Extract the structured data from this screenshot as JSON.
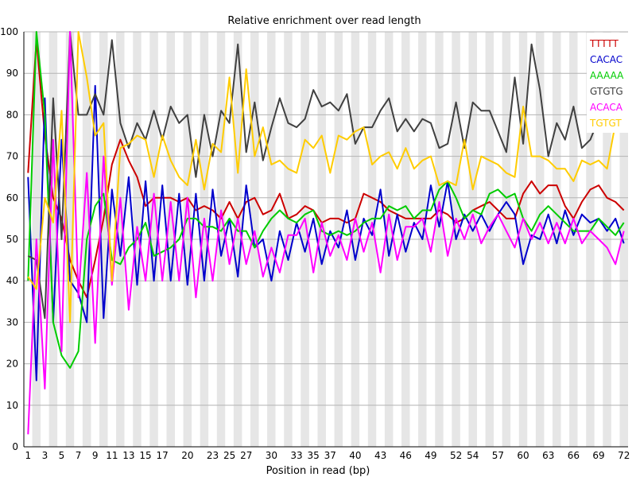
{
  "chart_data": {
    "type": "line",
    "title": "Relative enrichment over read length",
    "xlabel": "Position in read (bp)",
    "ylabel": "",
    "ylim": [
      0,
      100
    ],
    "yticks": [
      0,
      10,
      20,
      30,
      40,
      50,
      60,
      70,
      80,
      90,
      100
    ],
    "x": [
      1,
      2,
      3,
      4,
      5,
      6,
      7,
      8,
      9,
      10,
      11,
      12,
      13,
      14,
      15,
      16,
      17,
      18,
      19,
      20,
      21,
      22,
      23,
      24,
      25,
      26,
      27,
      28,
      29,
      30,
      31,
      32,
      33,
      34,
      35,
      36,
      37,
      38,
      39,
      40,
      41,
      42,
      43,
      44,
      45,
      46,
      47,
      48,
      49,
      50,
      51,
      52,
      53,
      54,
      55,
      56,
      57,
      58,
      59,
      60,
      61,
      62,
      63,
      64,
      65,
      66,
      67,
      68,
      69,
      70,
      71,
      72
    ],
    "xtick_labels": [
      "1",
      "3",
      "5",
      "7",
      "9",
      "11",
      "13",
      "15",
      "17",
      "20",
      "23",
      "25",
      "27",
      "30",
      "33",
      "35",
      "37",
      "40",
      "43",
      "46",
      "49",
      "52",
      "54",
      "57",
      "60",
      "63",
      "66",
      "69",
      "72"
    ],
    "xtick_positions": [
      1,
      3,
      5,
      7,
      9,
      11,
      13,
      15,
      17,
      20,
      23,
      25,
      27,
      30,
      33,
      35,
      37,
      40,
      43,
      46,
      49,
      52,
      54,
      57,
      60,
      63,
      66,
      69,
      72
    ],
    "grid": true,
    "legend_position": "top-right",
    "series": [
      {
        "name": "TTTTT",
        "color": "#cc0000",
        "values": [
          66,
          98,
          75,
          60,
          55,
          45,
          40,
          36,
          45,
          55,
          68,
          74,
          69,
          65,
          58,
          60,
          60,
          60,
          59,
          60,
          57,
          58,
          57,
          55,
          59,
          55,
          59,
          60,
          56,
          57,
          61,
          55,
          56,
          58,
          57,
          54,
          55,
          55,
          54,
          55,
          61,
          60,
          59,
          57,
          56,
          55,
          55,
          55,
          55,
          57,
          56,
          54,
          55,
          57,
          58,
          59,
          57,
          55,
          55,
          61,
          64,
          61,
          63,
          63,
          58,
          55,
          59,
          62,
          63,
          60,
          59,
          57
        ]
      },
      {
        "name": "CACAC",
        "color": "#0000cc",
        "values": [
          65,
          16,
          84,
          30,
          74,
          40,
          37,
          30,
          87,
          31,
          62,
          46,
          65,
          39,
          64,
          40,
          63,
          40,
          61,
          39,
          61,
          40,
          62,
          46,
          55,
          41,
          63,
          48,
          50,
          40,
          52,
          45,
          54,
          47,
          55,
          44,
          52,
          48,
          57,
          45,
          55,
          51,
          62,
          46,
          56,
          47,
          54,
          50,
          63,
          53,
          64,
          50,
          56,
          52,
          56,
          52,
          56,
          59,
          56,
          44,
          51,
          50,
          56,
          49,
          57,
          51,
          56,
          54,
          55,
          52,
          55,
          49
        ]
      },
      {
        "name": "AAAAA",
        "color": "#00cc00",
        "values": [
          40,
          100,
          80,
          30,
          22,
          19,
          23,
          50,
          58,
          61,
          45,
          44,
          48,
          50,
          54,
          46,
          47,
          48,
          50,
          55,
          55,
          53,
          53,
          52,
          55,
          52,
          52,
          48,
          52,
          55,
          57,
          55,
          54,
          56,
          57,
          52,
          51,
          52,
          51,
          52,
          54,
          55,
          55,
          58,
          57,
          58,
          55,
          57,
          57,
          62,
          64,
          60,
          55,
          57,
          56,
          61,
          62,
          60,
          61,
          55,
          52,
          56,
          58,
          56,
          54,
          52,
          52,
          52,
          55,
          53,
          51,
          54
        ]
      },
      {
        "name": "GTGTG",
        "color": "#404040",
        "values": [
          46,
          45,
          31,
          84,
          50,
          100,
          80,
          80,
          85,
          80,
          98,
          78,
          72,
          78,
          74,
          81,
          74,
          82,
          78,
          80,
          65,
          80,
          70,
          81,
          78,
          97,
          71,
          83,
          69,
          77,
          84,
          78,
          77,
          79,
          86,
          82,
          83,
          81,
          85,
          73,
          77,
          77,
          81,
          84,
          76,
          79,
          76,
          79,
          78,
          72,
          73,
          83,
          72,
          83,
          81,
          81,
          76,
          71,
          89,
          73,
          97,
          86,
          70,
          78,
          74,
          82,
          72,
          74,
          79,
          82,
          81,
          82
        ]
      },
      {
        "name": "ACACA",
        "color": "#ff00ff",
        "values": [
          3,
          50,
          14,
          74,
          23,
          100,
          36,
          66,
          25,
          70,
          39,
          60,
          33,
          53,
          40,
          61,
          40,
          59,
          40,
          60,
          36,
          55,
          40,
          57,
          44,
          55,
          44,
          52,
          41,
          48,
          42,
          51,
          51,
          55,
          42,
          54,
          46,
          51,
          45,
          55,
          47,
          54,
          42,
          56,
          45,
          53,
          53,
          55,
          47,
          59,
          46,
          55,
          50,
          56,
          49,
          53,
          56,
          52,
          48,
          55,
          50,
          54,
          49,
          54,
          49,
          55,
          49,
          52,
          50,
          48,
          44,
          52
        ]
      },
      {
        "name": "TGTGT",
        "color": "#ffcc00",
        "values": [
          41,
          38,
          60,
          54,
          81,
          30,
          100,
          89,
          75,
          78,
          40,
          72,
          73,
          75,
          74,
          65,
          75,
          69,
          65,
          63,
          74,
          62,
          73,
          71,
          89,
          66,
          91,
          70,
          77,
          68,
          69,
          67,
          66,
          74,
          72,
          75,
          66,
          75,
          74,
          76,
          77,
          68,
          70,
          71,
          67,
          72,
          67,
          69,
          70,
          63,
          64,
          63,
          74,
          62,
          70,
          69,
          68,
          66,
          65,
          82,
          70,
          70,
          69,
          67,
          67,
          64,
          69,
          68,
          69,
          67,
          78,
          77
        ]
      }
    ]
  }
}
